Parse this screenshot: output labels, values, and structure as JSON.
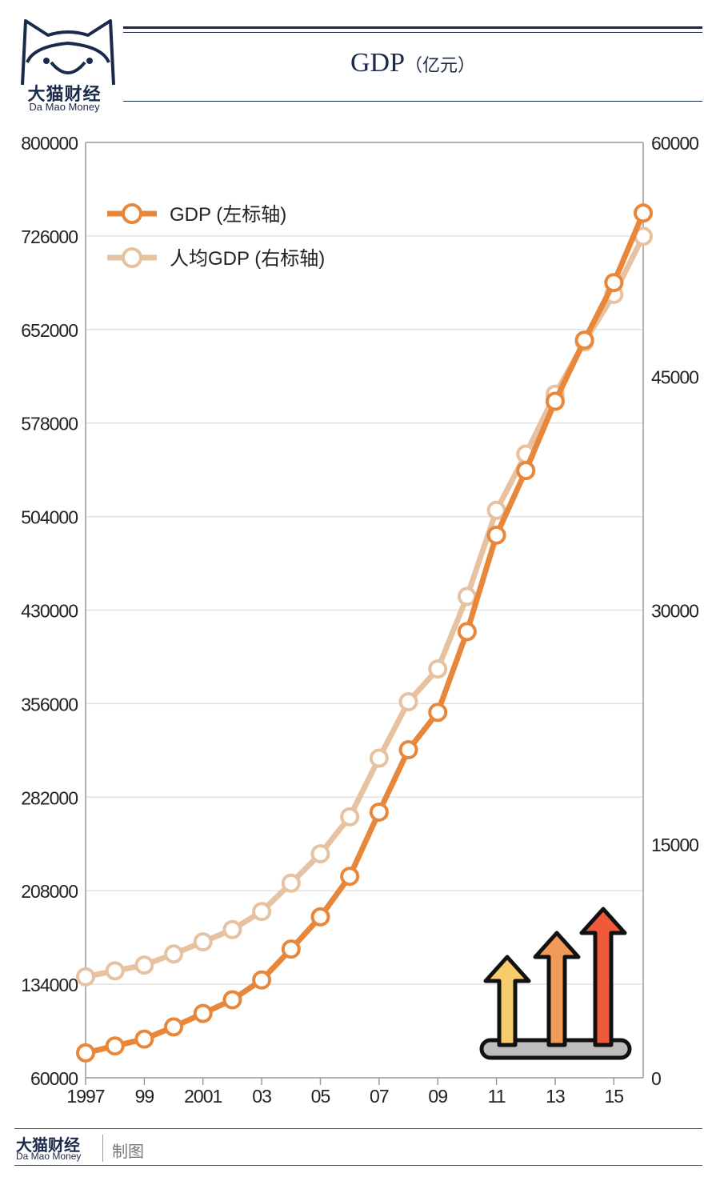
{
  "brand": {
    "name": "大猫财经",
    "subtitle": "Da Mao Money"
  },
  "header": {
    "title": "GDP",
    "unit": "（亿元）"
  },
  "footer": {
    "brand": "大猫财经",
    "subtitle": "Da Mao Money",
    "credit": "制图"
  },
  "colors": {
    "gdp": "#e8873a",
    "per_capita": "#e6c2a0",
    "navy": "#1a2a4a"
  },
  "icons": [
    "cat-logo-icon",
    "rising-arrows-icon"
  ],
  "chart_data": {
    "type": "line",
    "title": "GDP（亿元）",
    "x": [
      1997,
      1998,
      1999,
      2000,
      2001,
      2002,
      2003,
      2004,
      2005,
      2006,
      2007,
      2008,
      2009,
      2010,
      2011,
      2012,
      2013,
      2014,
      2015,
      2016
    ],
    "x_tick_values": [
      1997,
      1999,
      2001,
      2003,
      2005,
      2007,
      2009,
      2011,
      2013,
      2015
    ],
    "x_tick_labels": [
      "1997",
      "99",
      "2001",
      "03",
      "05",
      "07",
      "09",
      "11",
      "13",
      "15"
    ],
    "y_left": {
      "ticks": [
        60000,
        134000,
        208000,
        282000,
        356000,
        430000,
        504000,
        578000,
        652000,
        726000,
        800000
      ],
      "range": [
        60000,
        800000
      ]
    },
    "y_right": {
      "ticks": [
        0,
        15000,
        30000,
        45000,
        60000
      ],
      "range": [
        0,
        60000
      ]
    },
    "series": [
      {
        "name": "GDP (左标轴)",
        "axis": "left",
        "values": [
          79700,
          85200,
          90600,
          100300,
          110900,
          121700,
          137400,
          161800,
          187300,
          219400,
          270200,
          319500,
          349100,
          413000,
          489300,
          540400,
          595200,
          643600,
          689100,
          744100
        ]
      },
      {
        "name": "人均GDP (右标轴)",
        "axis": "right",
        "values": [
          6481,
          6860,
          7229,
          7942,
          8717,
          9506,
          10666,
          12487,
          14368,
          16738,
          20505,
          24121,
          26222,
          30876,
          36403,
          40007,
          43852,
          47203,
          50251,
          53980
        ]
      }
    ],
    "legend": "top-left",
    "grid": true
  }
}
